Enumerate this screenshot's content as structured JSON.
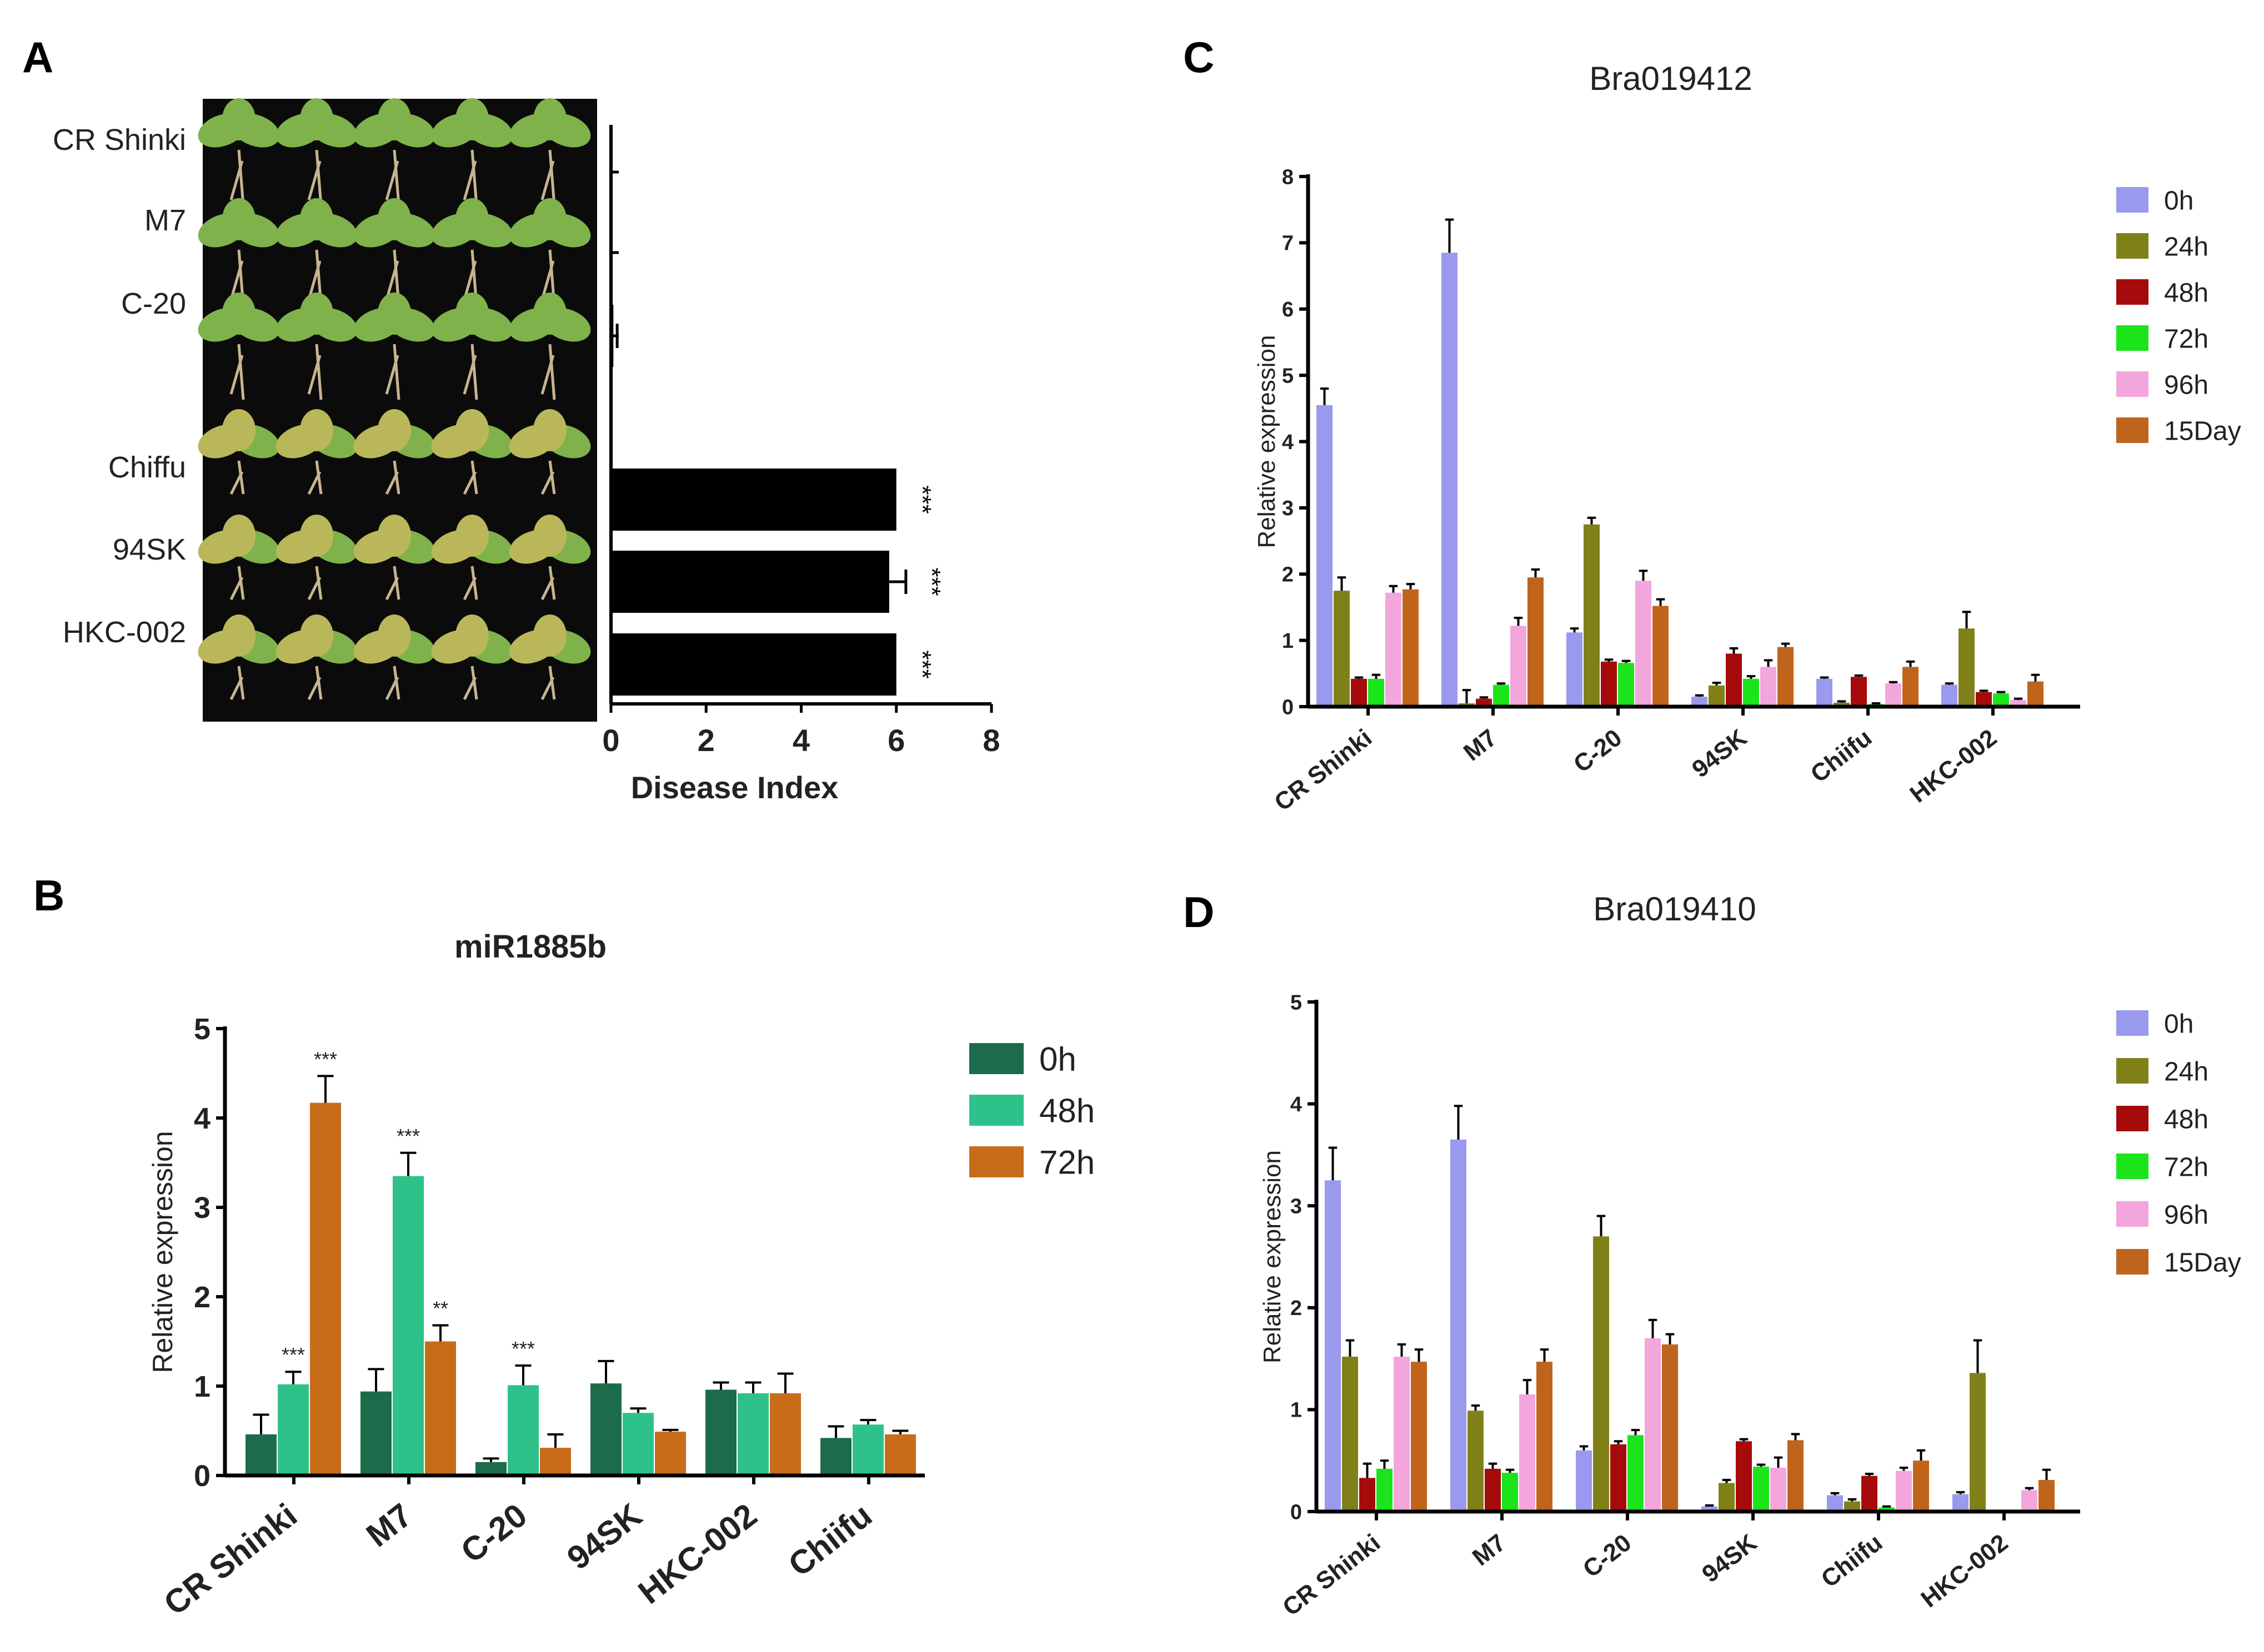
{
  "panel_letters": {
    "a": "A",
    "b": "B",
    "c": "C",
    "d": "D"
  },
  "colors": {
    "black": "#000000",
    "plant_bg": "#0b0b0b",
    "leaf_green": "#7fb24a",
    "leaf_yellow": "#b9b75a",
    "root": "#c8b490",
    "t0h": "#9999ee",
    "t24h": "#808019",
    "t48h": "#a50b0b",
    "t72h": "#1be41b",
    "t96h": "#f2a6dc",
    "t15day": "#c0641c",
    "b0h": "#1c6b4b",
    "b48h": "#2ec28a",
    "b72h": "#c86c1a"
  },
  "chart_data": [
    {
      "panel": "A",
      "type": "bar",
      "orientation": "horizontal",
      "title": "",
      "xlabel": "Disease Index",
      "ylabel": "",
      "xlim": [
        0,
        8
      ],
      "xticks": [
        "0",
        "2",
        "4",
        "6",
        "8"
      ],
      "categories": [
        "CR Shinki",
        "M7",
        "C-20",
        "Chiffu",
        "94SK",
        "HKC-002"
      ],
      "values": [
        0,
        0,
        0.05,
        6,
        5.85,
        6
      ],
      "errors": [
        0,
        0,
        0.08,
        0,
        0.35,
        0
      ],
      "significance": [
        "",
        "",
        "",
        "***",
        "***",
        "***"
      ]
    },
    {
      "panel": "B",
      "type": "bar",
      "title": "miR1885b",
      "xlabel": "",
      "ylabel": "Relative expression",
      "ylim": [
        0,
        5
      ],
      "yticks": [
        "0",
        "1",
        "2",
        "3",
        "4",
        "5"
      ],
      "categories": [
        "CR Shinki",
        "M7",
        "C-20",
        "94SK",
        "HKC-002",
        "Chiifu"
      ],
      "series": [
        {
          "name": "0h",
          "color_key": "b0h",
          "values": [
            0.46,
            0.94,
            0.15,
            1.03,
            0.96,
            0.42
          ],
          "errors": [
            0.22,
            0.25,
            0.04,
            0.25,
            0.08,
            0.13
          ],
          "labels": [
            "",
            "",
            "",
            "",
            "",
            ""
          ]
        },
        {
          "name": "48h",
          "color_key": "b48h",
          "values": [
            1.02,
            3.35,
            1.01,
            0.7,
            0.92,
            0.57
          ],
          "errors": [
            0.14,
            0.26,
            0.22,
            0.05,
            0.12,
            0.05
          ],
          "labels": [
            "***",
            "***",
            "***",
            "",
            "",
            ""
          ]
        },
        {
          "name": "72h",
          "color_key": "b72h",
          "values": [
            4.17,
            1.5,
            0.31,
            0.49,
            0.92,
            0.46
          ],
          "errors": [
            0.3,
            0.18,
            0.15,
            0.02,
            0.22,
            0.04
          ],
          "labels": [
            "***",
            "**",
            "",
            "",
            "",
            ""
          ]
        }
      ]
    },
    {
      "panel": "C",
      "type": "bar",
      "title": "Bra019412",
      "xlabel": "",
      "ylabel": "Relative expression",
      "ylim": [
        0,
        8
      ],
      "yticks": [
        "0",
        "1",
        "2",
        "3",
        "4",
        "5",
        "6",
        "7",
        "8"
      ],
      "categories": [
        "CR Shinki",
        "M7",
        "C-20",
        "94SK",
        "Chiifu",
        "HKC-002"
      ],
      "series": [
        {
          "name": "0h",
          "color_key": "t0h",
          "values": [
            4.55,
            6.85,
            1.12,
            0.15,
            0.42,
            0.33
          ],
          "errors": [
            0.25,
            0.5,
            0.06,
            0.02,
            0.02,
            0.02
          ]
        },
        {
          "name": "24h",
          "color_key": "t24h",
          "values": [
            1.75,
            0.05,
            2.75,
            0.32,
            0.06,
            1.18
          ],
          "errors": [
            0.2,
            0.2,
            0.1,
            0.04,
            0.02,
            0.25
          ]
        },
        {
          "name": "48h",
          "color_key": "t48h",
          "values": [
            0.42,
            0.12,
            0.68,
            0.8,
            0.45,
            0.22
          ],
          "errors": [
            0.02,
            0.02,
            0.03,
            0.08,
            0.02,
            0.02
          ]
        },
        {
          "name": "72h",
          "color_key": "t72h",
          "values": [
            0.42,
            0.33,
            0.66,
            0.42,
            0.04,
            0.2
          ],
          "errors": [
            0.06,
            0.02,
            0.03,
            0.04,
            0.01,
            0.02
          ]
        },
        {
          "name": "96h",
          "color_key": "t96h",
          "values": [
            1.72,
            1.22,
            1.9,
            0.6,
            0.35,
            0.1
          ],
          "errors": [
            0.1,
            0.12,
            0.15,
            0.1,
            0.02,
            0.02
          ]
        },
        {
          "name": "15Day",
          "color_key": "t15day",
          "values": [
            1.77,
            1.95,
            1.52,
            0.9,
            0.6,
            0.38
          ],
          "errors": [
            0.08,
            0.12,
            0.1,
            0.05,
            0.08,
            0.1
          ]
        }
      ]
    },
    {
      "panel": "D",
      "type": "bar",
      "title": "Bra019410",
      "xlabel": "",
      "ylabel": "Relative expression",
      "ylim": [
        0,
        5
      ],
      "yticks": [
        "0",
        "1",
        "2",
        "3",
        "4",
        "5"
      ],
      "categories": [
        "CR Shinki",
        "M7",
        "C-20",
        "94SK",
        "Chiifu",
        "HKC-002"
      ],
      "series": [
        {
          "name": "0h",
          "color_key": "t0h",
          "values": [
            3.25,
            3.65,
            0.6,
            0.05,
            0.16,
            0.17
          ],
          "errors": [
            0.32,
            0.33,
            0.04,
            0.01,
            0.02,
            0.02
          ]
        },
        {
          "name": "24h",
          "color_key": "t24h",
          "values": [
            1.52,
            0.99,
            2.7,
            0.28,
            0.1,
            1.36
          ],
          "errors": [
            0.16,
            0.05,
            0.2,
            0.03,
            0.02,
            0.32
          ]
        },
        {
          "name": "48h",
          "color_key": "t48h",
          "values": [
            0.33,
            0.42,
            0.66,
            0.69,
            0.35,
            0.0
          ],
          "errors": [
            0.14,
            0.05,
            0.03,
            0.02,
            0.02,
            0.0
          ]
        },
        {
          "name": "72h",
          "color_key": "t72h",
          "values": [
            0.42,
            0.38,
            0.75,
            0.44,
            0.04,
            0.0
          ],
          "errors": [
            0.08,
            0.03,
            0.05,
            0.02,
            0.01,
            0.0
          ]
        },
        {
          "name": "96h",
          "color_key": "t96h",
          "values": [
            1.52,
            1.15,
            1.7,
            0.43,
            0.4,
            0.21
          ],
          "errors": [
            0.12,
            0.14,
            0.18,
            0.1,
            0.03,
            0.02
          ]
        },
        {
          "name": "15Day",
          "color_key": "t15day",
          "values": [
            1.47,
            1.47,
            1.64,
            0.7,
            0.5,
            0.31
          ],
          "errors": [
            0.12,
            0.12,
            0.1,
            0.06,
            0.1,
            0.1
          ]
        }
      ]
    }
  ]
}
